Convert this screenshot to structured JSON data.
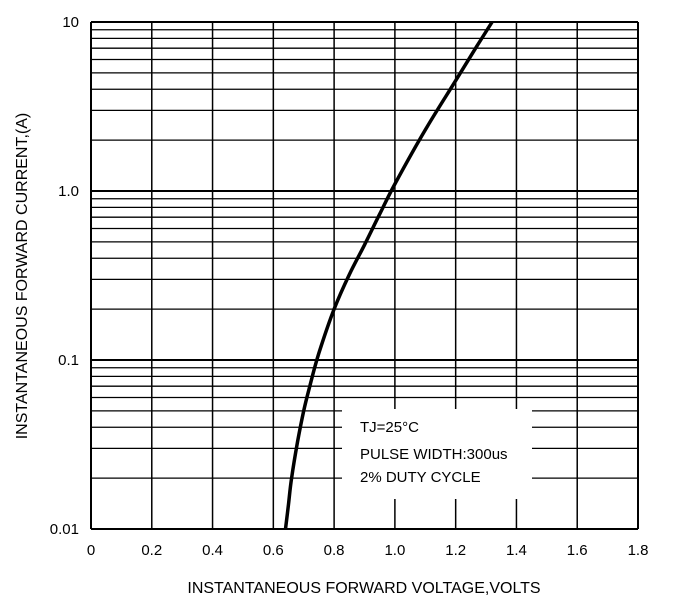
{
  "chart_data": {
    "type": "line",
    "title": "",
    "xlabel": "INSTANTANEOUS FORWARD VOLTAGE,VOLTS",
    "ylabel": "INSTANTANEOUS FORWARD CURRENT,(A)",
    "xlim": [
      0,
      1.8
    ],
    "ylim": [
      0.01,
      10
    ],
    "yscale": "log",
    "grid": true,
    "x_ticks": [
      "0",
      "0.2",
      "0.4",
      "0.6",
      "0.8",
      "1.0",
      "1.2",
      "1.4",
      "1.6",
      "1.8"
    ],
    "y_ticks": [
      "0.01",
      "0.1",
      "1.0",
      "10"
    ],
    "annotations": [
      "TJ=25°C",
      "PULSE WIDTH:300us",
      "2% DUTY CYCLE"
    ],
    "series": [
      {
        "x": [
          0.64,
          0.65,
          0.66,
          0.68,
          0.7,
          0.72,
          0.75,
          0.8,
          0.85,
          0.9,
          0.95,
          1.0,
          1.1,
          1.2,
          1.27,
          1.32
        ],
        "y": [
          0.01,
          0.014,
          0.02,
          0.033,
          0.05,
          0.07,
          0.11,
          0.2,
          0.32,
          0.48,
          0.73,
          1.1,
          2.3,
          4.5,
          7.2,
          10
        ]
      }
    ],
    "colors": {
      "line": "#000000",
      "grid": "#000000"
    }
  }
}
